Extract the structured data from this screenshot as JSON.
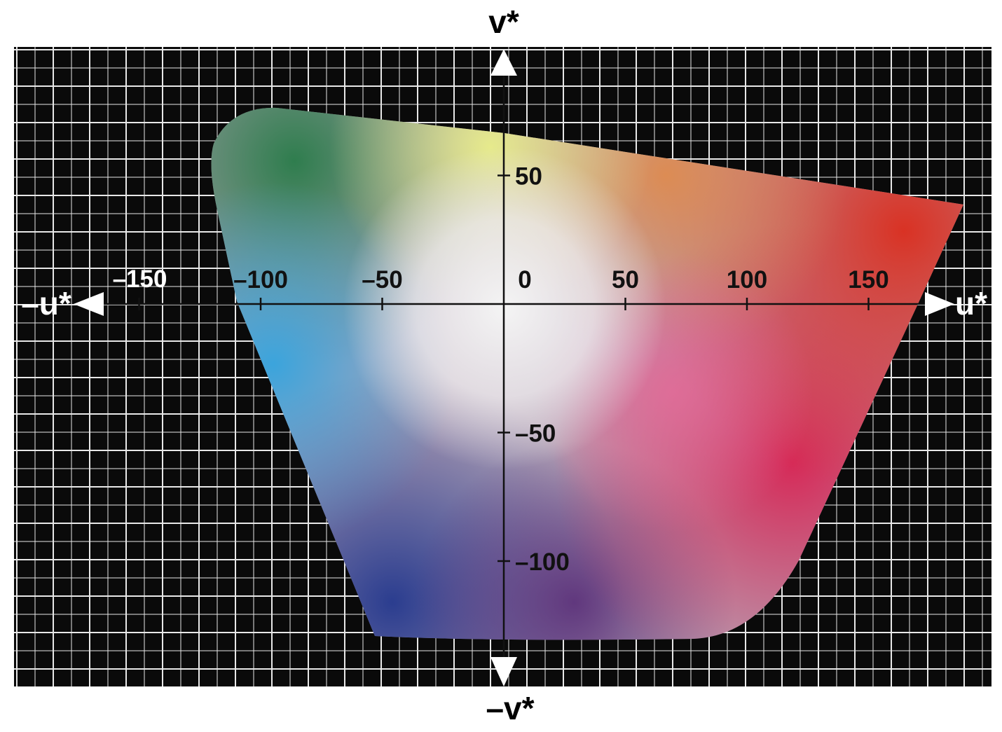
{
  "diagram": {
    "axes": {
      "pos_v_label": "v*",
      "neg_v_label": "–v*",
      "pos_u_label": "u*",
      "neg_u_label": "–u*"
    },
    "u_ticks": [
      {
        "value": -150,
        "label": "–150"
      },
      {
        "value": -100,
        "label": "–100"
      },
      {
        "value": -50,
        "label": "–50"
      },
      {
        "value": 0,
        "label": "0"
      },
      {
        "value": 50,
        "label": "50"
      },
      {
        "value": 100,
        "label": "100"
      },
      {
        "value": 150,
        "label": "150"
      }
    ],
    "v_ticks": [
      {
        "value": 50,
        "label": "50"
      },
      {
        "value": -50,
        "label": "–50"
      },
      {
        "value": -100,
        "label": "–100"
      }
    ],
    "colors": {
      "background": "#0a0a0a",
      "grid": "#e8e8e8",
      "axis": "#111111",
      "arrow": "#ffffff",
      "gamut_green": "#2f7d4e",
      "gamut_yellow": "#e6ea8c",
      "gamut_red": "#d93224",
      "gamut_cyan": "#3ba4dc",
      "gamut_blue": "#2b3d8f",
      "gamut_magenta": "#d62a58",
      "gamut_white": "#f2f2f2"
    }
  }
}
